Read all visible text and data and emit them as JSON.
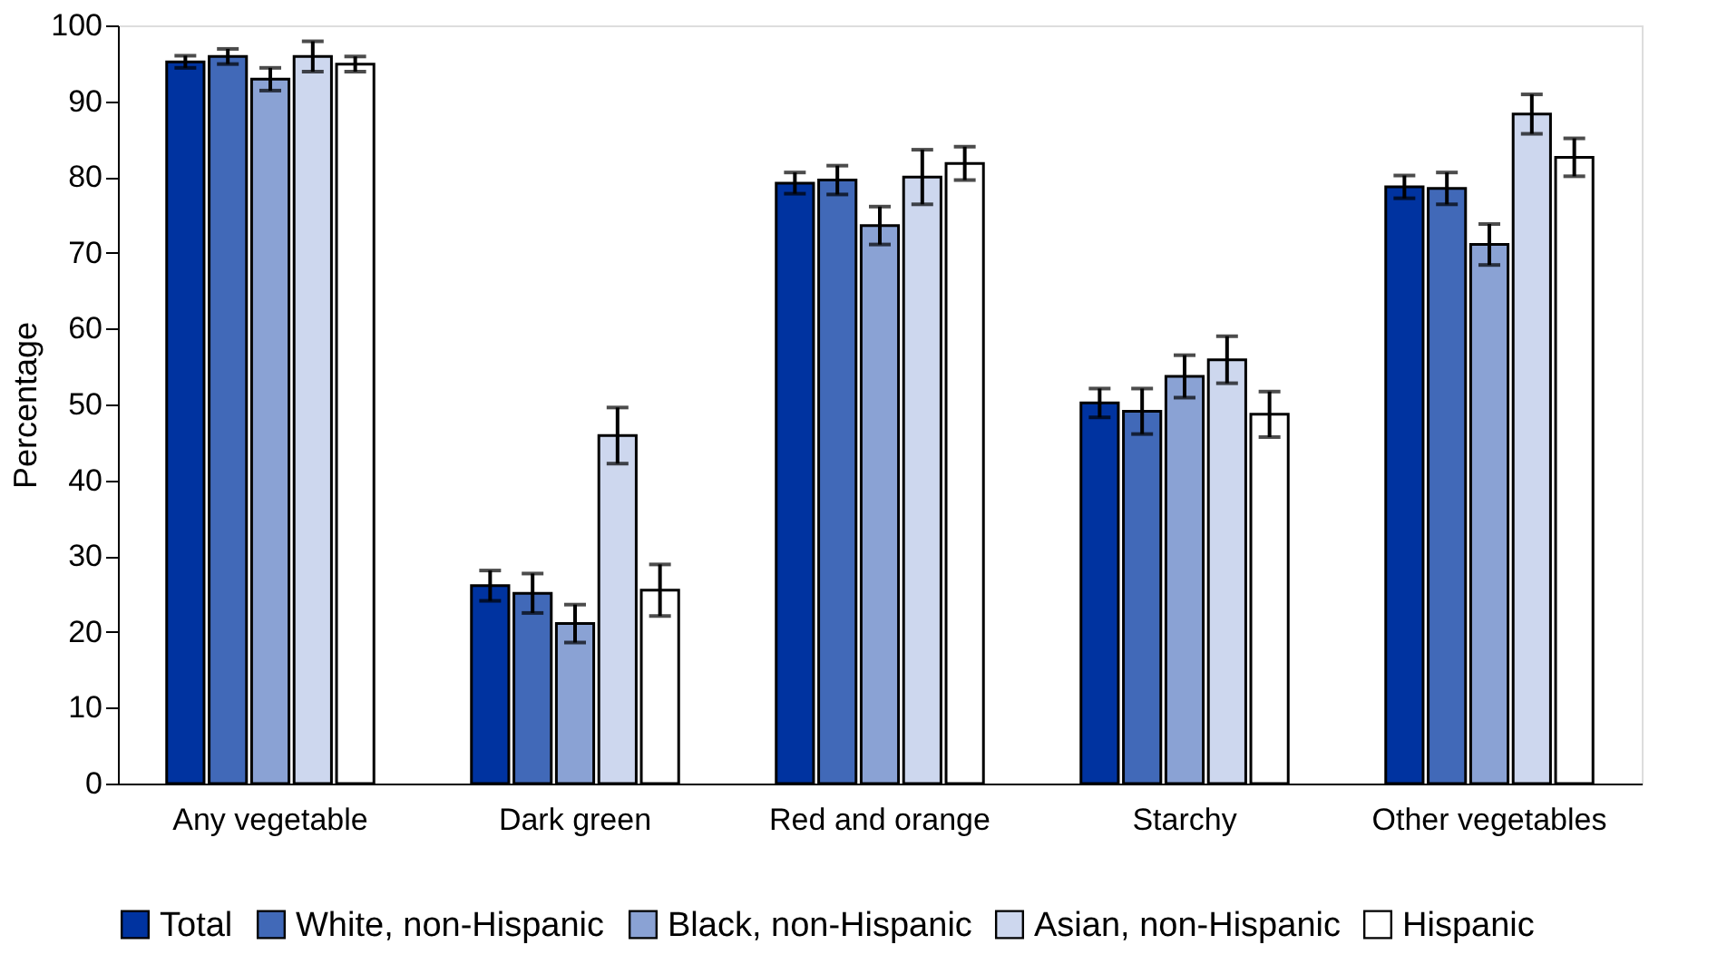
{
  "chart_data": {
    "type": "bar",
    "ylabel": "Percentage",
    "categories": [
      "Any vegetable",
      "Dark green",
      "Red and orange",
      "Starchy",
      "Other vegetables"
    ],
    "ylim": [
      0,
      100
    ],
    "yticks": [
      0,
      10,
      20,
      30,
      40,
      50,
      60,
      70,
      80,
      90,
      100
    ],
    "grid": false,
    "legend": "bottom",
    "series": [
      {
        "name": "Total",
        "color": "#0033a0",
        "values": [
          95.2,
          26.1,
          79.2,
          50.2,
          78.7
        ],
        "errors": [
          0.8,
          2,
          1.4,
          1.9,
          1.5
        ]
      },
      {
        "name": "White, non-Hispanic",
        "color": "#4169b8",
        "values": [
          95.9,
          25.1,
          79.6,
          49.1,
          78.5
        ],
        "errors": [
          1,
          2.6,
          1.9,
          3,
          2.1
        ]
      },
      {
        "name": "Black, non-Hispanic",
        "color": "#8aa2d4",
        "values": [
          92.9,
          21.1,
          73.6,
          53.7,
          71.1
        ],
        "errors": [
          1.5,
          2.5,
          2.5,
          2.8,
          2.7
        ]
      },
      {
        "name": "Asian, non-Hispanic",
        "color": "#cdd7ee",
        "values": [
          95.9,
          45.9,
          80.0,
          55.9,
          88.3
        ],
        "errors": [
          2,
          3.7,
          3.6,
          3.1,
          2.6
        ]
      },
      {
        "name": "Hispanic",
        "color": "#ffffff",
        "values": [
          94.9,
          25.5,
          81.8,
          48.7,
          82.6
        ],
        "errors": [
          1,
          3.4,
          2.2,
          3,
          2.5
        ]
      }
    ]
  }
}
